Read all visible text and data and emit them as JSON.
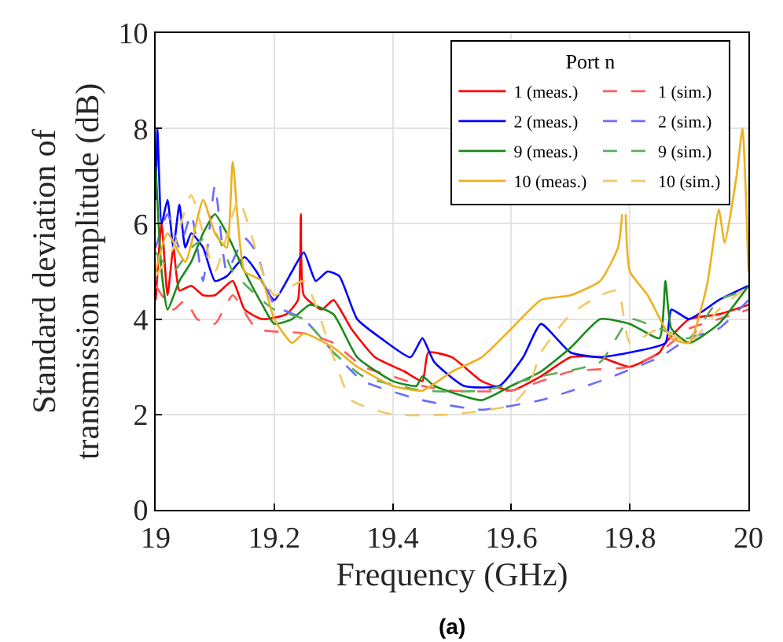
{
  "chart_data": {
    "type": "line",
    "xlabel": "Frequency (GHz)",
    "ylabel": "Standard deviation of\ntransmission amplitude (dB)",
    "legend_title": "Port n",
    "legend": "top right",
    "grid": true,
    "line_style": "solid",
    "xlim": [
      19,
      20
    ],
    "xticks": [
      19,
      19.2,
      19.4,
      19.6,
      19.8,
      20
    ],
    "ylim": [
      0,
      10
    ],
    "yticks": [
      0,
      2,
      4,
      6,
      8,
      10
    ],
    "annotations": [
      "(a)"
    ],
    "series": [
      {
        "name": "1 (meas.)",
        "color": "#ff0000",
        "x": [
          19.0,
          19.01,
          19.02,
          19.03,
          19.04,
          19.06,
          19.08,
          19.1,
          19.13,
          19.15,
          19.18,
          19.22,
          19.24,
          19.245,
          19.25,
          19.28,
          19.3,
          19.33,
          19.37,
          19.42,
          19.45,
          19.46,
          19.5,
          19.55,
          19.6,
          19.65,
          19.7,
          19.75,
          19.8,
          19.85,
          19.86,
          19.9,
          19.95,
          20.0
        ],
        "values": [
          4.4,
          6.0,
          4.5,
          5.5,
          4.6,
          4.7,
          4.5,
          4.5,
          4.8,
          4.2,
          4.0,
          4.1,
          4.4,
          6.2,
          4.5,
          4.2,
          4.4,
          3.8,
          3.2,
          2.9,
          2.7,
          3.3,
          3.2,
          2.7,
          2.5,
          2.8,
          3.2,
          3.2,
          3.0,
          3.3,
          3.5,
          4.0,
          4.1,
          4.3
        ]
      },
      {
        "name": "1 (sim.)",
        "color": "#ff5c5c",
        "line_style": "dashed",
        "x": [
          19.0,
          19.03,
          19.05,
          19.07,
          19.1,
          19.13,
          19.17,
          19.25,
          19.3,
          19.35,
          19.4,
          19.45,
          19.5,
          19.6,
          19.7,
          19.8,
          19.85,
          19.9,
          19.95,
          20.0
        ],
        "values": [
          4.7,
          4.2,
          4.4,
          4.0,
          3.9,
          4.5,
          3.8,
          3.7,
          3.5,
          3.0,
          2.8,
          2.6,
          2.5,
          2.5,
          2.9,
          3.0,
          3.3,
          3.8,
          4.0,
          4.2
        ]
      },
      {
        "name": "2 (meas.)",
        "color": "#0000ff",
        "x": [
          19.0,
          19.003,
          19.01,
          19.02,
          19.03,
          19.04,
          19.05,
          19.06,
          19.08,
          19.1,
          19.12,
          19.15,
          19.17,
          19.2,
          19.23,
          19.25,
          19.27,
          19.29,
          19.31,
          19.34,
          19.38,
          19.43,
          19.45,
          19.47,
          19.52,
          19.58,
          19.62,
          19.65,
          19.7,
          19.75,
          19.8,
          19.86,
          19.87,
          19.9,
          19.95,
          20.0
        ],
        "values": [
          6.5,
          8.0,
          6.0,
          6.5,
          5.5,
          6.4,
          5.5,
          5.8,
          5.5,
          4.8,
          4.9,
          5.3,
          5.0,
          4.4,
          5.0,
          5.4,
          4.8,
          5.0,
          4.9,
          4.0,
          3.6,
          3.2,
          3.6,
          3.1,
          2.6,
          2.6,
          3.2,
          3.9,
          3.3,
          3.2,
          3.3,
          3.5,
          4.2,
          4.0,
          4.4,
          4.7
        ]
      },
      {
        "name": "2 (sim.)",
        "color": "#6b6bff",
        "line_style": "dashed",
        "x": [
          19.0,
          19.02,
          19.04,
          19.06,
          19.08,
          19.1,
          19.12,
          19.15,
          19.17,
          19.2,
          19.25,
          19.3,
          19.35,
          19.45,
          19.55,
          19.65,
          19.75,
          19.85,
          19.9,
          19.95,
          20.0
        ],
        "values": [
          5.5,
          6.2,
          5.5,
          6.2,
          4.8,
          6.8,
          5.0,
          5.7,
          5.4,
          4.3,
          4.0,
          3.3,
          2.7,
          2.3,
          2.1,
          2.3,
          2.7,
          3.2,
          3.6,
          3.8,
          4.4
        ]
      },
      {
        "name": "9 (meas.)",
        "color": "#1a8a1a",
        "x": [
          19.0,
          19.01,
          19.02,
          19.04,
          19.06,
          19.08,
          19.1,
          19.12,
          19.15,
          19.18,
          19.2,
          19.23,
          19.26,
          19.3,
          19.34,
          19.4,
          19.44,
          19.45,
          19.47,
          19.55,
          19.6,
          19.65,
          19.7,
          19.75,
          19.8,
          19.85,
          19.86,
          19.87,
          19.9,
          19.95,
          20.0
        ],
        "values": [
          7.2,
          5.0,
          4.2,
          4.8,
          5.2,
          5.8,
          6.2,
          5.8,
          5.0,
          4.3,
          3.9,
          4.0,
          4.3,
          4.1,
          3.2,
          2.7,
          2.6,
          2.8,
          2.6,
          2.3,
          2.6,
          2.9,
          3.4,
          4.0,
          3.9,
          3.6,
          4.8,
          3.8,
          3.5,
          3.9,
          4.7
        ]
      },
      {
        "name": "9 (sim.)",
        "color": "#5aad5a",
        "line_style": "dashed",
        "x": [
          19.0,
          19.03,
          19.06,
          19.1,
          19.13,
          19.17,
          19.2,
          19.25,
          19.3,
          19.35,
          19.45,
          19.55,
          19.65,
          19.75,
          19.8,
          19.85,
          19.9,
          19.95,
          20.0
        ],
        "values": [
          5.4,
          5.0,
          5.5,
          5.8,
          5.0,
          4.5,
          4.2,
          4.0,
          3.3,
          2.8,
          2.5,
          2.5,
          2.8,
          3.1,
          4.0,
          3.8,
          3.6,
          4.4,
          4.6
        ]
      },
      {
        "name": "10 (meas.)",
        "color": "#edb120",
        "x": [
          19.0,
          19.02,
          19.05,
          19.08,
          19.1,
          19.12,
          19.13,
          19.15,
          19.18,
          19.2,
          19.23,
          19.25,
          19.3,
          19.34,
          19.4,
          19.45,
          19.5,
          19.55,
          19.6,
          19.65,
          19.7,
          19.75,
          19.78,
          19.787,
          19.79,
          19.793,
          19.8,
          19.83,
          19.87,
          19.9,
          19.93,
          19.95,
          19.96,
          19.98,
          19.99,
          20.0
        ],
        "values": [
          5.0,
          5.8,
          5.2,
          6.5,
          5.8,
          5.5,
          7.3,
          5.0,
          4.8,
          4.0,
          3.5,
          3.7,
          3.4,
          3.0,
          2.6,
          2.5,
          2.9,
          3.2,
          3.8,
          4.4,
          4.5,
          4.8,
          5.5,
          6.2,
          null,
          6.2,
          5.0,
          4.5,
          3.6,
          3.5,
          4.7,
          6.3,
          5.6,
          7.0,
          8.0,
          5.0
        ]
      },
      {
        "name": "10 (sim.)",
        "color": "#f2c862",
        "line_style": "dashed",
        "x": [
          19.0,
          19.03,
          19.06,
          19.1,
          19.14,
          19.18,
          19.2,
          19.25,
          19.3,
          19.33,
          19.4,
          19.5,
          19.6,
          19.63,
          19.65,
          19.7,
          19.75,
          19.78,
          19.8,
          19.85,
          19.9,
          19.95,
          20.0
        ],
        "values": [
          4.9,
          5.5,
          6.6,
          5.0,
          6.5,
          5.0,
          4.5,
          4.8,
          3.2,
          2.3,
          2.0,
          2.0,
          2.2,
          2.6,
          3.3,
          4.1,
          4.5,
          4.6,
          3.5,
          3.8,
          3.5,
          4.2,
          4.7
        ]
      }
    ]
  }
}
